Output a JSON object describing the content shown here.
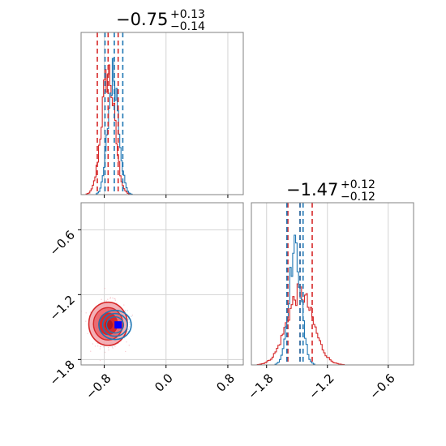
{
  "chart_data": {
    "type": "corner",
    "colors": {
      "red": "#d62728",
      "blue": "#1f77b4",
      "marker": "#0000ff",
      "grid": "#d3d3d3",
      "axes": "#808080"
    },
    "panels": {
      "hist_x": {
        "title": {
          "main": "−0.75",
          "sup": "+0.13",
          "sub": "−0.14"
        },
        "xlim": [
          -1.1,
          1.0
        ],
        "red_quantiles": [
          -0.89,
          -0.75,
          -0.62
        ],
        "blue_quantiles": [
          -0.79,
          -0.67,
          -0.56
        ]
      },
      "hist_y": {
        "title": {
          "main": "−1.47",
          "sup": "+0.12",
          "sub": "−0.12"
        },
        "xlim": [
          -1.95,
          -0.35
        ],
        "xticks": [
          -1.8,
          -1.2,
          -0.6
        ],
        "xtick_labels": [
          "−1.8",
          "−1.2",
          "−0.6"
        ],
        "red_quantiles": [
          -1.59,
          -1.47,
          -1.35
        ],
        "blue_quantiles": [
          -1.6,
          -1.47,
          -1.44
        ]
      },
      "scatter": {
        "xlim": [
          -1.1,
          1.0
        ],
        "ylim": [
          -1.85,
          -0.35
        ],
        "xticks": [
          -0.8,
          0.0,
          0.8
        ],
        "xtick_labels": [
          "−0.8",
          "0.0",
          "0.8"
        ],
        "yticks": [
          -1.8,
          -1.2,
          -0.6
        ],
        "ytick_labels": [
          "−1.8",
          "−1.2",
          "−0.6"
        ],
        "red_center": [
          -0.75,
          -1.47
        ],
        "blue_center": [
          -0.66,
          -1.48
        ],
        "marker": [
          -0.62,
          -1.48
        ]
      }
    }
  }
}
